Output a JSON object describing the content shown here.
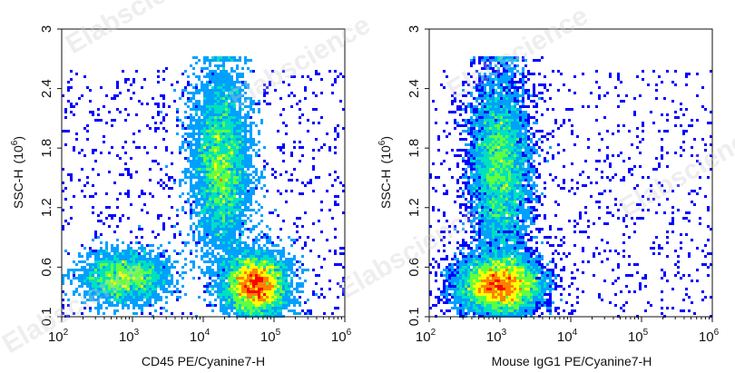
{
  "watermark_text": "Elabscience",
  "chart_data": [
    {
      "type": "scatter",
      "subtype": "flow-cytometry-density-plot",
      "xlabel": "CD45 PE/Cyanine7-H",
      "ylabel": "SSC-H",
      "ylabel_unit_base": "10",
      "ylabel_unit_exp": "6",
      "x_scale": "log",
      "xlim": [
        100,
        1000000
      ],
      "ylim": [
        0.1,
        3
      ],
      "x_ticks": [
        {
          "base": "10",
          "exp": "2",
          "value": 100
        },
        {
          "base": "10",
          "exp": "3",
          "value": 1000
        },
        {
          "base": "10",
          "exp": "4",
          "value": 10000
        },
        {
          "base": "10",
          "exp": "5",
          "value": 100000
        },
        {
          "base": "10",
          "exp": "6",
          "value": 1000000
        }
      ],
      "y_ticks": [
        "0.1",
        "0.6",
        "1.2",
        "1.8",
        "2.4",
        "3"
      ],
      "y_tick_values": [
        0.1,
        0.6,
        1.2,
        1.8,
        2.4,
        3
      ],
      "populations": [
        {
          "x_center": 55000,
          "y_center": 0.42,
          "x_spread_decades": 0.22,
          "y_spread": 0.16,
          "density": "highest",
          "share": 0.42
        },
        {
          "x_center": 18000,
          "y_center": 1.65,
          "x_spread_decades": 0.2,
          "y_spread": 0.45,
          "density": "medium",
          "share": 0.38
        },
        {
          "x_center": 800,
          "y_center": 0.5,
          "x_spread_decades": 0.3,
          "y_spread": 0.13,
          "density": "low",
          "share": 0.2
        }
      ]
    },
    {
      "type": "scatter",
      "subtype": "flow-cytometry-density-plot",
      "xlabel": "Mouse IgG1 PE/Cyanine7-H",
      "ylabel": "SSC-H",
      "ylabel_unit_base": "10",
      "ylabel_unit_exp": "6",
      "x_scale": "log",
      "xlim": [
        100,
        1000000
      ],
      "ylim": [
        0.1,
        3
      ],
      "x_ticks": [
        {
          "base": "10",
          "exp": "2",
          "value": 100
        },
        {
          "base": "10",
          "exp": "3",
          "value": 1000
        },
        {
          "base": "10",
          "exp": "4",
          "value": 10000
        },
        {
          "base": "10",
          "exp": "5",
          "value": 100000
        },
        {
          "base": "10",
          "exp": "6",
          "value": 1000000
        }
      ],
      "y_ticks": [
        "0.1",
        "0.6",
        "1.2",
        "1.8",
        "2.4",
        "3"
      ],
      "y_tick_values": [
        0.1,
        0.6,
        1.2,
        1.8,
        2.4,
        3
      ],
      "populations": [
        {
          "x_center": 1000,
          "y_center": 0.42,
          "x_spread_decades": 0.3,
          "y_spread": 0.15,
          "density": "highest",
          "share": 0.55
        },
        {
          "x_center": 1000,
          "y_center": 1.6,
          "x_spread_decades": 0.22,
          "y_spread": 0.5,
          "density": "medium",
          "share": 0.45
        }
      ]
    }
  ],
  "colors": {
    "density_scale": [
      "#0000ff",
      "#00a0ff",
      "#00e0c0",
      "#60ff40",
      "#ffff00",
      "#ff8000",
      "#ff0000"
    ],
    "axis": "#111111",
    "watermark": "#cfcfcf"
  }
}
